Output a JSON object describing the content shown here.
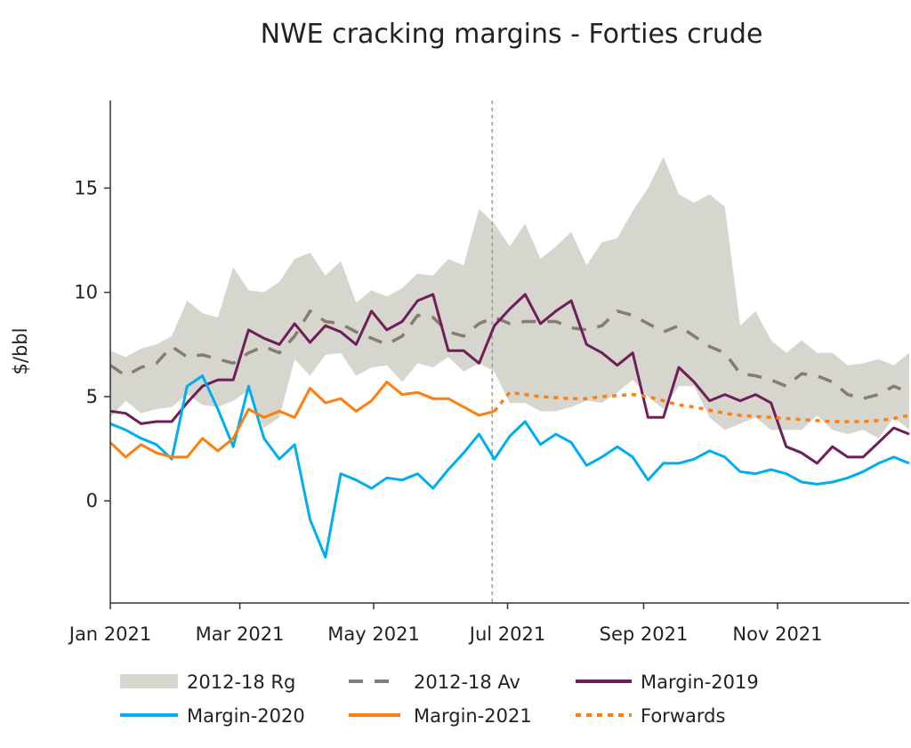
{
  "chart_data": {
    "type": "line",
    "title": "NWE cracking margins - Forties crude",
    "ylabel": "$/bbl",
    "xlabel": "",
    "xlim": [
      "2021-01-01",
      "2021-12-31"
    ],
    "ylim": [
      -4.9,
      19.2
    ],
    "yticks": [
      0,
      5,
      10,
      15
    ],
    "xticks": [
      {
        "date": "2021-01-01",
        "label": "Jan 2021"
      },
      {
        "date": "2021-03-01",
        "label": "Mar 2021"
      },
      {
        "date": "2021-05-01",
        "label": "May 2021"
      },
      {
        "date": "2021-07-01",
        "label": "Jul 2021"
      },
      {
        "date": "2021-09-01",
        "label": "Sep 2021"
      },
      {
        "date": "2021-11-01",
        "label": "Nov 2021"
      }
    ],
    "grid": false,
    "legend_position": "bottom",
    "vline": "2021-06-24",
    "x": [
      "2021-01-01",
      "2021-01-08",
      "2021-01-15",
      "2021-01-22",
      "2021-01-29",
      "2021-02-05",
      "2021-02-12",
      "2021-02-19",
      "2021-02-26",
      "2021-03-05",
      "2021-03-12",
      "2021-03-19",
      "2021-03-26",
      "2021-04-02",
      "2021-04-09",
      "2021-04-16",
      "2021-04-23",
      "2021-04-30",
      "2021-05-07",
      "2021-05-14",
      "2021-05-21",
      "2021-05-28",
      "2021-06-04",
      "2021-06-11",
      "2021-06-18",
      "2021-06-25",
      "2021-07-02",
      "2021-07-09",
      "2021-07-16",
      "2021-07-23",
      "2021-07-30",
      "2021-08-06",
      "2021-08-13",
      "2021-08-20",
      "2021-08-27",
      "2021-09-03",
      "2021-09-10",
      "2021-09-17",
      "2021-09-24",
      "2021-10-01",
      "2021-10-08",
      "2021-10-15",
      "2021-10-22",
      "2021-10-29",
      "2021-11-05",
      "2021-11-12",
      "2021-11-19",
      "2021-11-26",
      "2021-12-03",
      "2021-12-10",
      "2021-12-17",
      "2021-12-24",
      "2021-12-31"
    ],
    "range": {
      "name": "2012-18 Rg",
      "color": "#d6d5ce",
      "low": [
        4.0,
        4.8,
        4.2,
        4.4,
        4.5,
        5.1,
        4.6,
        4.5,
        4.8,
        5.3,
        3.5,
        4.0,
        6.8,
        6.0,
        7.0,
        7.1,
        6.0,
        6.4,
        6.5,
        5.7,
        6.6,
        6.4,
        6.9,
        6.2,
        6.6,
        6.2,
        4.7,
        4.7,
        4.3,
        4.3,
        4.5,
        4.8,
        4.7,
        5.2,
        5.8,
        5.0,
        4.4,
        5.5,
        5.5,
        4.0,
        3.4,
        3.7,
        4.0,
        3.4,
        3.4,
        3.4,
        4.1,
        3.4,
        3.2,
        3.4,
        3.0,
        4.0,
        3.4
      ],
      "high": [
        7.2,
        6.9,
        7.3,
        7.5,
        7.9,
        9.6,
        9.0,
        8.8,
        11.2,
        10.1,
        10.0,
        10.5,
        11.6,
        11.9,
        10.8,
        11.5,
        9.5,
        10.1,
        9.8,
        10.2,
        10.9,
        10.8,
        11.6,
        11.3,
        14.0,
        13.3,
        12.2,
        13.3,
        11.6,
        12.2,
        12.9,
        11.3,
        12.4,
        12.6,
        13.9,
        15.0,
        16.5,
        14.7,
        14.3,
        14.7,
        14.1,
        8.4,
        9.1,
        7.7,
        7.1,
        7.7,
        7.1,
        7.1,
        6.5,
        6.6,
        6.8,
        6.5,
        7.1
      ]
    },
    "series": [
      {
        "name": "2012-18 Av",
        "color": "#877c73",
        "style": "dashed",
        "values": [
          6.5,
          6.0,
          6.4,
          6.6,
          7.4,
          6.9,
          7.0,
          6.8,
          6.6,
          7.1,
          7.4,
          7.1,
          7.9,
          9.1,
          8.6,
          8.5,
          8.1,
          7.8,
          7.5,
          7.9,
          8.9,
          8.8,
          8.1,
          7.9,
          8.5,
          8.8,
          8.5,
          8.6,
          8.6,
          8.6,
          8.3,
          8.2,
          8.4,
          9.1,
          8.9,
          8.5,
          8.1,
          8.4,
          7.9,
          7.4,
          7.1,
          6.1,
          6.0,
          5.8,
          5.5,
          6.1,
          6.0,
          5.7,
          5.1,
          4.9,
          5.1,
          5.5,
          5.2
        ]
      },
      {
        "name": "Margin-2019",
        "color": "#6e1f58",
        "style": "solid",
        "values": [
          4.3,
          4.2,
          3.7,
          3.8,
          3.8,
          4.7,
          5.5,
          5.8,
          5.8,
          8.2,
          7.8,
          7.5,
          8.5,
          7.6,
          8.4,
          8.1,
          7.5,
          9.1,
          8.2,
          8.6,
          9.6,
          9.9,
          7.2,
          7.2,
          6.6,
          8.4,
          9.2,
          9.9,
          8.5,
          9.1,
          9.6,
          7.5,
          7.1,
          6.5,
          7.1,
          4.0,
          4.0,
          6.4,
          5.7,
          4.8,
          5.1,
          4.8,
          5.1,
          4.7,
          2.6,
          2.3,
          1.8,
          2.6,
          2.1,
          2.1,
          2.8,
          3.5,
          3.2
        ]
      },
      {
        "name": "Margin-2020",
        "color": "#00aeef",
        "style": "solid",
        "values": [
          3.7,
          3.4,
          3.0,
          2.7,
          2.0,
          5.5,
          6.0,
          4.4,
          2.6,
          5.5,
          3.0,
          2.0,
          2.7,
          -0.9,
          -2.7,
          1.3,
          1.0,
          0.6,
          1.1,
          1.0,
          1.3,
          0.6,
          1.5,
          2.3,
          3.2,
          2.0,
          3.1,
          3.8,
          2.7,
          3.2,
          2.8,
          1.7,
          2.1,
          2.6,
          2.1,
          1.0,
          1.8,
          1.8,
          2.0,
          2.4,
          2.1,
          1.4,
          1.3,
          1.5,
          1.3,
          0.9,
          0.8,
          0.9,
          1.1,
          1.4,
          1.8,
          2.1,
          1.8
        ]
      },
      {
        "name": "Margin-2021",
        "color": "#ff7f0e",
        "style": "solid",
        "values": [
          2.8,
          2.1,
          2.7,
          2.3,
          2.1,
          2.1,
          3.0,
          2.4,
          3.0,
          4.4,
          4.0,
          4.3,
          4.0,
          5.4,
          4.7,
          4.9,
          4.3,
          4.8,
          5.7,
          5.1,
          5.2,
          4.9,
          4.9,
          4.5,
          4.1,
          4.3,
          null,
          null,
          null,
          null,
          null,
          null,
          null,
          null,
          null,
          null,
          null,
          null,
          null,
          null,
          null,
          null,
          null,
          null,
          null,
          null,
          null,
          null,
          null,
          null,
          null,
          null,
          null
        ]
      },
      {
        "name": "Forwards",
        "color": "#ff7f0e",
        "style": "dotted",
        "values": [
          null,
          null,
          null,
          null,
          null,
          null,
          null,
          null,
          null,
          null,
          null,
          null,
          null,
          null,
          null,
          null,
          null,
          null,
          null,
          null,
          null,
          null,
          null,
          null,
          null,
          4.3,
          5.2,
          5.1,
          5.0,
          4.95,
          4.9,
          4.9,
          5.0,
          5.05,
          5.1,
          5.0,
          4.8,
          4.6,
          4.5,
          4.35,
          4.2,
          4.1,
          4.05,
          4.0,
          3.95,
          3.9,
          3.85,
          3.8,
          3.8,
          3.8,
          3.85,
          3.95,
          4.1
        ]
      }
    ]
  }
}
